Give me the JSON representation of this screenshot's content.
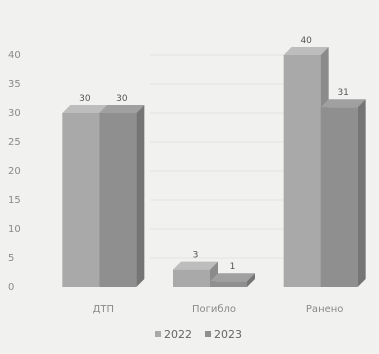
{
  "chart_data": {
    "type": "bar",
    "categories": [
      "ДТП",
      "Погибло",
      "Ранено"
    ],
    "series": [
      {
        "name": "2022",
        "values": [
          30,
          3,
          40
        ],
        "color": "#a9a9a9"
      },
      {
        "name": "2023",
        "values": [
          30,
          1,
          31
        ],
        "color": "#8f8f8f"
      }
    ],
    "ylim": [
      0,
      40
    ],
    "yticks": [
      "0",
      "5",
      "10",
      "15",
      "20",
      "25",
      "30",
      "35",
      "40"
    ],
    "grid": true,
    "legend": "bottom"
  }
}
